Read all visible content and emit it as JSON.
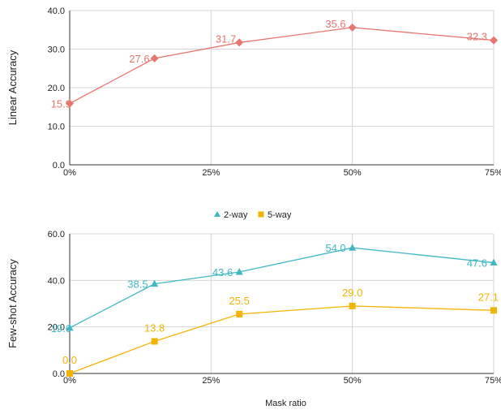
{
  "chart_data": [
    {
      "type": "line",
      "ylabel": "Linear Accuracy",
      "xlabel": "",
      "x": [
        0,
        15,
        30,
        50,
        75
      ],
      "xticks": [
        "0%",
        "25%",
        "50%",
        "75%"
      ],
      "xtick_values": [
        0,
        25,
        50,
        75
      ],
      "xlim": [
        0,
        75
      ],
      "yticks": [
        "0.0",
        "10.0",
        "20.0",
        "30.0",
        "40.0"
      ],
      "ylim": [
        0,
        40
      ],
      "grid": true,
      "series": [
        {
          "values": [
            15.9,
            27.6,
            31.7,
            35.6,
            32.3
          ],
          "labels": [
            "15.9",
            "27.6",
            "31.7",
            "35.6",
            "32.3"
          ],
          "color": "#e8766f",
          "marker": "diamond"
        }
      ]
    },
    {
      "type": "line",
      "ylabel": "Few-shot Accuracy",
      "xlabel": "Mask ratio",
      "x": [
        0,
        15,
        30,
        50,
        75
      ],
      "xticks": [
        "0%",
        "25%",
        "50%",
        "75%"
      ],
      "xtick_values": [
        0,
        25,
        50,
        75
      ],
      "xlim": [
        0,
        75
      ],
      "yticks": [
        "0.0",
        "20.0",
        "40.0",
        "60.0"
      ],
      "ylim": [
        0,
        60
      ],
      "grid": true,
      "legend": "top-center",
      "series": [
        {
          "name": "2-way",
          "values": [
            19.6,
            38.5,
            43.6,
            54.0,
            47.6
          ],
          "labels": [
            "19.6",
            "38.5",
            "43.6",
            "54.0",
            "47.6"
          ],
          "color": "#3fb8c4",
          "marker": "triangle"
        },
        {
          "name": "5-way",
          "values": [
            0.0,
            13.8,
            25.5,
            29.0,
            27.1
          ],
          "labels": [
            "0.0",
            "13.8",
            "25.5",
            "29.0",
            "27.1"
          ],
          "color": "#f2b400",
          "marker": "square"
        }
      ]
    }
  ]
}
